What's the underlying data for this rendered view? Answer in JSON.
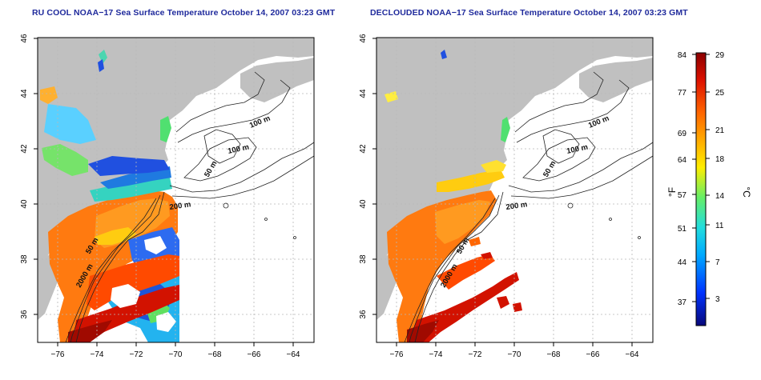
{
  "panels": [
    {
      "title": "RU COOL NOAA−17 Sea Surface Temperature October 14, 2007 03:23 GMT",
      "contours": {
        "c100": "100 m",
        "c100b": "100 m",
        "c50a": "50 m",
        "c200": "200 m",
        "c50b": "50 m",
        "c2000": "2000 m"
      }
    },
    {
      "title": "DECLOUDED NOAA−17 Sea Surface Temperature October 14, 2007 03:23 GMT",
      "contours": {
        "c100": "100 m",
        "c100b": "100 m",
        "c50a": "50 m",
        "c200": "200 m",
        "c50b": "50 m",
        "c2000": "2000 m"
      }
    }
  ],
  "axes": {
    "lon_ticks": [
      "−76",
      "−74",
      "−72",
      "−70",
      "−68",
      "−66",
      "−64"
    ],
    "lat_ticks": [
      "46",
      "44",
      "42",
      "40",
      "38",
      "36"
    ],
    "lon_range": [
      -77,
      -63
    ],
    "lat_range": [
      35,
      46
    ]
  },
  "colorbar": {
    "f_label": "°F",
    "c_label": "°C",
    "f_ticks": [
      "84",
      "77",
      "69",
      "64",
      "57",
      "51",
      "44",
      "37"
    ],
    "c_ticks": [
      "29",
      "25",
      "21",
      "18",
      "14",
      "11",
      "7",
      "3"
    ],
    "colors": [
      "#08087a",
      "#0033ff",
      "#00aaff",
      "#22dddd",
      "#66ee66",
      "#ffee00",
      "#ffaa00",
      "#ff6600",
      "#dd1100",
      "#8b0000"
    ]
  }
}
